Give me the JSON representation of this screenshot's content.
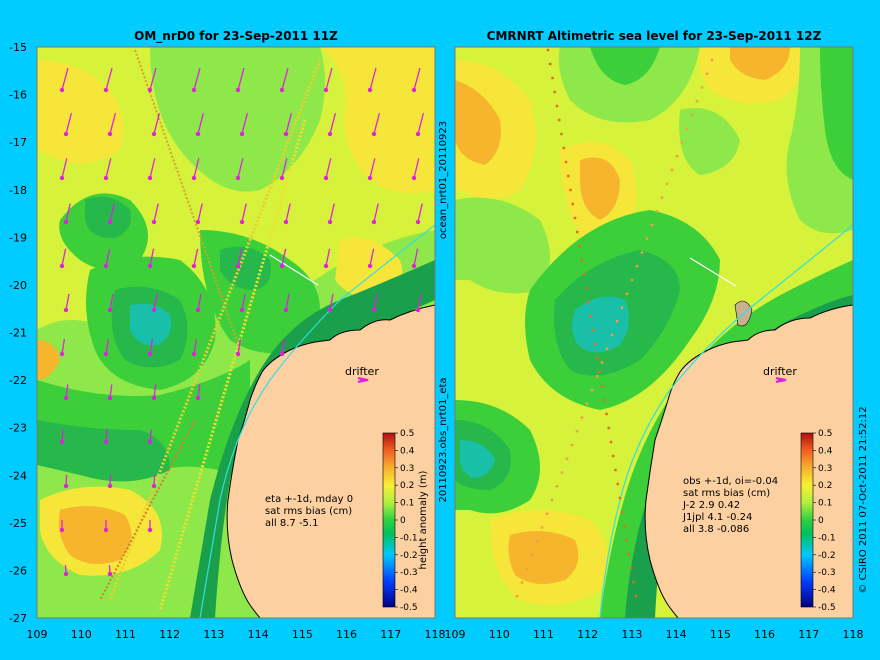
{
  "left_panel": {
    "title": "OM_nrD0 for 23-Sep-2011 11Z",
    "side_label": "ocean_nrt01_20110923",
    "drifter_label": "drifter",
    "info_lines": [
      "eta +-1d, mday 0",
      "sat rms bias (cm)",
      "all 8.7 -5.1"
    ]
  },
  "right_panel": {
    "title": "CMRNRT Altimetric sea level  for 23-Sep-2011 12Z",
    "side_label": "20110923.obs_nrt01_eta",
    "drifter_label": "drifter",
    "info_lines": [
      "obs +-1d, oi=-0.04",
      "sat rms bias (cm)",
      "J-2   2.9 0.42",
      "J1jpl 4.1 -0.24",
      "all 3.8 -0.086"
    ]
  },
  "y_ticks": [
    "-15",
    "-16",
    "-17",
    "-18",
    "-19",
    "-20",
    "-21",
    "-22",
    "-23",
    "-24",
    "-25",
    "-26",
    "-27"
  ],
  "x_ticks": [
    "109",
    "110",
    "111",
    "112",
    "113",
    "114",
    "115",
    "116",
    "117",
    "118"
  ],
  "colorbar": {
    "label": "height anomaly (m)",
    "ticks": [
      "0.5",
      "0.4",
      "0.3",
      "0.2",
      "0.1",
      "0",
      "-0.1",
      "-0.2",
      "-0.3",
      "-0.4",
      "-0.5"
    ]
  },
  "credit": "© CSIRO 2011  07-Oct-2011 21:52:12",
  "colors": {
    "background": "#00ccff",
    "land": "#fcd0a0",
    "arrow": "#dd22dd",
    "coastline": "#000000",
    "contour_levels": [
      "#1a9f4a",
      "#26b84a",
      "#3ccf3a",
      "#8ee84a",
      "#d6f23a",
      "#f6e63a",
      "#f7b52e",
      "#f39020"
    ]
  }
}
